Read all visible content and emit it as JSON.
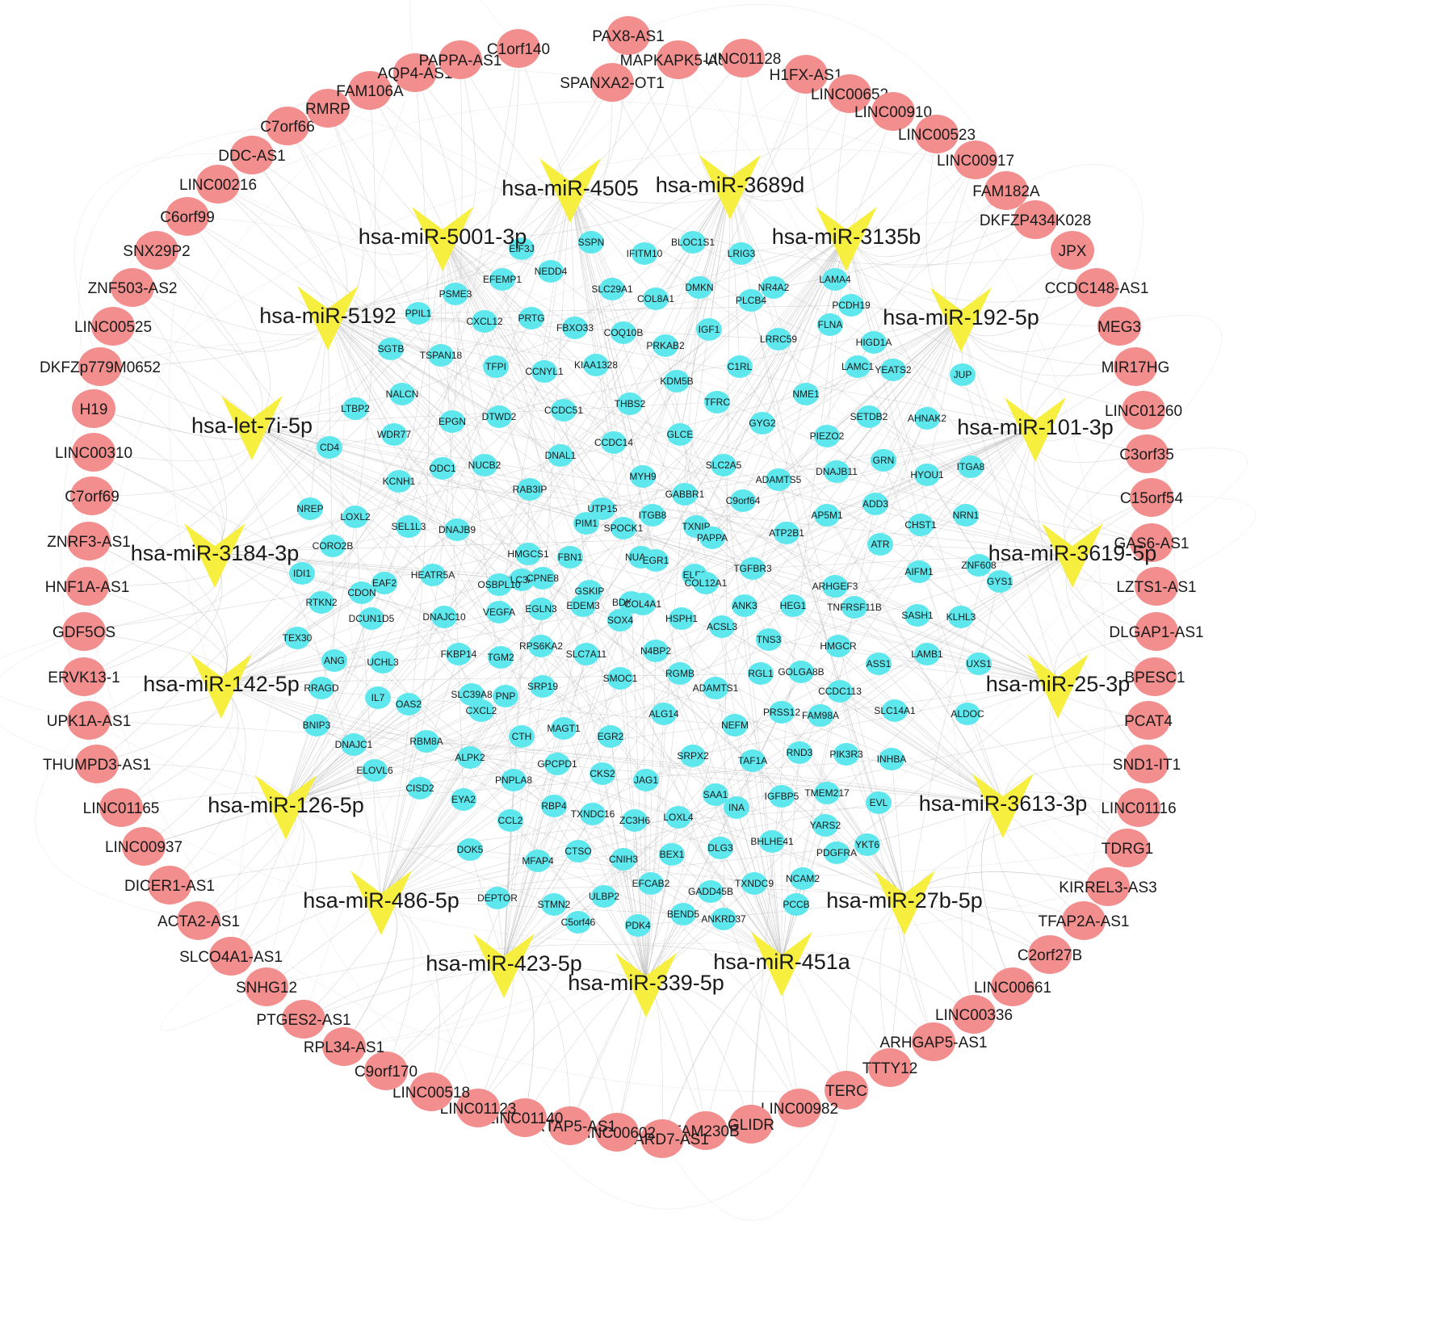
{
  "colors": {
    "lncrna_node": "#f28e8e",
    "mirna_node": "#f7ef3f",
    "mrna_node": "#5ee8ee",
    "edge": "#b9b9b9",
    "background": "#ffffff"
  },
  "mirnas": [
    "hsa-miR-4505",
    "hsa-miR-3689d",
    "hsa-miR-3135b",
    "hsa-miR-192-5p",
    "hsa-miR-101-3p",
    "hsa-miR-3619-5p",
    "hsa-miR-25-3p",
    "hsa-miR-3613-3p",
    "hsa-miR-27b-5p",
    "hsa-miR-451a",
    "hsa-miR-339-5p",
    "hsa-miR-423-5p",
    "hsa-miR-486-5p",
    "hsa-miR-126-5p",
    "hsa-miR-142-5p",
    "hsa-miR-3184-3p",
    "hsa-let-7i-5p",
    "hsa-miR-5192",
    "hsa-miR-5001-3p"
  ],
  "lncrnas": [
    "PAX8-AS1",
    "MAPKAPK5-AS1",
    "LINC01128",
    "H1FX-AS1",
    "LINC00652",
    "LINC00910",
    "LINC00523",
    "LINC00917",
    "FAM182A",
    "DKFZP434K028",
    "JPX",
    "CCDC148-AS1",
    "MEG3",
    "MIR17HG",
    "LINC01260",
    "C3orf35",
    "C15orf54",
    "GAS6-AS1",
    "LZTS1-AS1",
    "DLGAP1-AS1",
    "BPESC1",
    "PCAT4",
    "SND1-IT1",
    "LINC01116",
    "TDRG1",
    "KIRREL3-AS3",
    "TFAP2A-AS1",
    "C2orf27B",
    "LINC00661",
    "LINC00336",
    "ARHGAP5-AS1",
    "TTTY12",
    "TERC",
    "LINC00982",
    "GLIDR",
    "FAM230B",
    "STARD7-AS1",
    "LINC00602",
    "KRTAP5-AS1",
    "LINC01140",
    "LINC01123",
    "LINC00518",
    "C9orf170",
    "RPL34-AS1",
    "PTGES2-AS1",
    "SNHG12",
    "SLCO4A1-AS1",
    "ACTA2-AS1",
    "DICER1-AS1",
    "LINC00937",
    "LINC01165",
    "THUMPD3-AS1",
    "UPK1A-AS1",
    "ERVK13-1",
    "GDF5OS",
    "HNF1A-AS1",
    "ZNRF3-AS1",
    "C7orf69",
    "LINC00310",
    "H19",
    "DKFZp779M0652",
    "LINC00525",
    "ZNF503-AS2",
    "SNX29P2",
    "C6orf99",
    "LINC00216",
    "DDC-AS1",
    "C7orf66",
    "RMRP",
    "FAM106A",
    "AQP4-AS1",
    "PAPPA-AS1",
    "C1orf140",
    "SPANXA2-OT1"
  ],
  "mrnas": [
    "EIF3J",
    "SSPN",
    "IFITM10",
    "BLOC1S1",
    "LRIG3",
    "EFEMP1",
    "NEDD4",
    "SLC29A1",
    "COL8A1",
    "DMKN",
    "NR4A2",
    "LAMA4",
    "PSME3",
    "PPIL1",
    "CXCL12",
    "PRTG",
    "FBXO33",
    "COQ10B",
    "IGF1",
    "PLCB4",
    "PCDH19",
    "SGTB",
    "TSPAN18",
    "PRKAB2",
    "LRRC59",
    "FLNA",
    "HIGD1A",
    "TFPI",
    "CCNYL1",
    "KIAA1328",
    "C1RL",
    "LAMC1",
    "YEATS2",
    "JUP",
    "NALCN",
    "KDM5B",
    "LTBP2",
    "EPGN",
    "DTWD2",
    "CCDC51",
    "THBS2",
    "TFRC",
    "NME1",
    "SETDB2",
    "AHNAK2",
    "WDR77",
    "GYG2",
    "CD4",
    "CCDC14",
    "GLCE",
    "PIEZO2",
    "ODC1",
    "NUCB2",
    "DNAL1",
    "SLC2A5",
    "DNAJB11",
    "GRN",
    "KCNH1",
    "MYH9",
    "ADAMTS5",
    "HYOU1",
    "ITGA8",
    "RAB3IP",
    "UTP15",
    "NREP",
    "PIM1",
    "GABBR1",
    "C9orf64",
    "LOXL2",
    "DNAJB9",
    "ADD3",
    "SEL1L3",
    "ITGB8",
    "AP5M1",
    "NRN1",
    "CORO2B",
    "HMGCS1",
    "FBN1",
    "SPOCK1",
    "TXNIP",
    "PAPPA",
    "ATP2B1",
    "CHST1",
    "SLC3A2",
    "NUAK1",
    "IDI1",
    "EAF2",
    "OSBPL10",
    "EGR1",
    "ELF2",
    "ATR",
    "HEATR5A",
    "CPNE8",
    "GSKIP",
    "BDKRB2",
    "COL12A1",
    "TGFBR3",
    "ARHGEF3",
    "AIFM1",
    "ZNF608",
    "CDON",
    "GYS1",
    "RTKN2",
    "DCUN1D5",
    "DNAJC10",
    "VEGFA",
    "EGLN3",
    "EDEM3",
    "COL4A1",
    "ANK3",
    "HEG1",
    "TNFRSF11B",
    "SOX4",
    "HSPH1",
    "ACSL3",
    "SASH1",
    "KLHL3",
    "TEX30",
    "TNS3",
    "ANG",
    "FKBP14",
    "TGM2",
    "RPS6KA2",
    "SLC7A11",
    "N4BP2",
    "HMGCR",
    "UCHL3",
    "LAMB1",
    "ASS1",
    "UXS1",
    "RRAGD",
    "GOLGA8B",
    "RGMB",
    "RGL1",
    "SMOC1",
    "ADAMTS1",
    "CCDC113",
    "IL7",
    "SRP19",
    "SLC39A8",
    "PNP",
    "OAS2",
    "CXCL2",
    "FAM98A",
    "PRSS12",
    "SLC14A1",
    "ALDOC",
    "ALG14",
    "NEFM",
    "BNIP3",
    "MAGT1",
    "CTH",
    "EGR2",
    "RBM8A",
    "DNAJC1",
    "ALPK2",
    "RND3",
    "PIK3R3",
    "SRPX2",
    "TAF1A",
    "INHBA",
    "ELOVL6",
    "GPCPD1",
    "CKS2",
    "CISD2",
    "JAG1",
    "PNPLA8",
    "EYA2",
    "TMEM217",
    "SAA1",
    "IGFBP5",
    "INA",
    "EVL",
    "RBP4",
    "TXNDC16",
    "CCL2",
    "LOXL4",
    "ZC3H6",
    "YARS2",
    "BHLHE41",
    "DOK5",
    "CTSO",
    "YKT6",
    "MFAP4",
    "CNIH3",
    "BEX1",
    "DLG3",
    "PDGFRA",
    "EFCAB2",
    "NCAM2",
    "TXNDC9",
    "GADD45B",
    "DEPTOR",
    "STMN2",
    "ULBP2",
    "C5orf46",
    "BEND5",
    "PDK4",
    "ANKRD37",
    "PCCB"
  ]
}
